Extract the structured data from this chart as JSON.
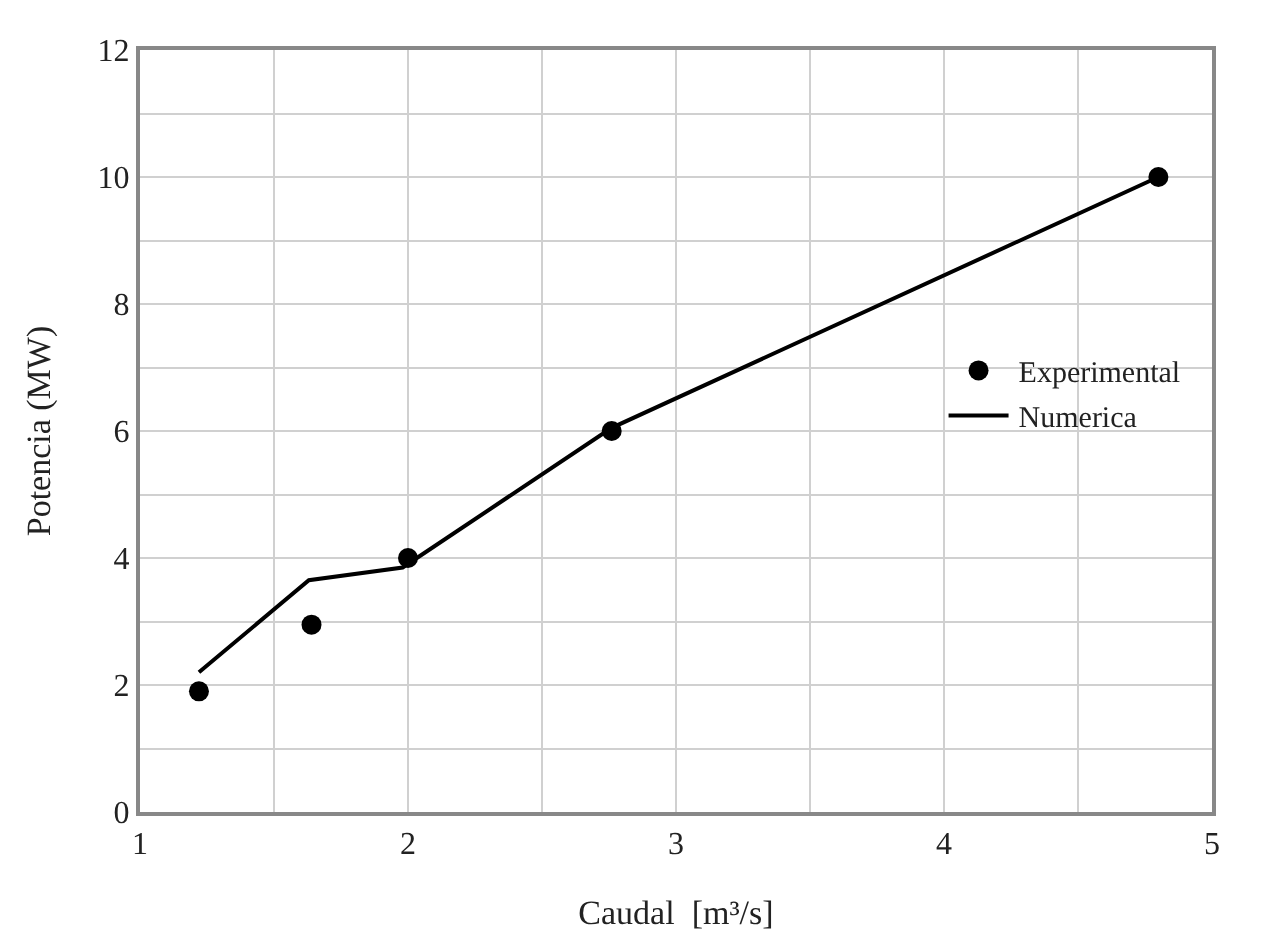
{
  "chart_data": {
    "type": "scatter",
    "xlabel": "Caudal  [m³/s]",
    "ylabel": "Potencia (MW)",
    "xlim": [
      1,
      5
    ],
    "ylim": [
      0,
      12
    ],
    "xticks": [
      1,
      {
        "value": 1.5,
        "label": null
      },
      2,
      {
        "value": 2.5,
        "label": null
      },
      3,
      {
        "value": 3.5,
        "label": null
      },
      4,
      {
        "value": 4.5,
        "label": null
      },
      5
    ],
    "yticks": [
      0,
      {
        "value": 1,
        "label": null
      },
      2,
      {
        "value": 3,
        "label": null
      },
      4,
      {
        "value": 5,
        "label": null
      },
      6,
      {
        "value": 7,
        "label": null
      },
      8,
      {
        "value": 9,
        "label": null
      },
      10,
      {
        "value": 11,
        "label": null
      },
      12
    ],
    "grid": true,
    "legend": "right",
    "series": [
      {
        "name": "Experimental",
        "type": "scatter",
        "marker": "circle",
        "color": "#000000",
        "x": [
          1.22,
          1.64,
          2.0,
          2.76,
          4.8
        ],
        "values": [
          1.9,
          2.95,
          4.0,
          6.0,
          10.0
        ]
      },
      {
        "name": "Numerica",
        "type": "line",
        "marker": "none",
        "line_style": "solid",
        "color": "#000000",
        "x": [
          1.22,
          1.63,
          1.98,
          2.76,
          4.8
        ],
        "values": [
          2.2,
          3.65,
          3.85,
          6.05,
          10.0
        ]
      }
    ]
  }
}
